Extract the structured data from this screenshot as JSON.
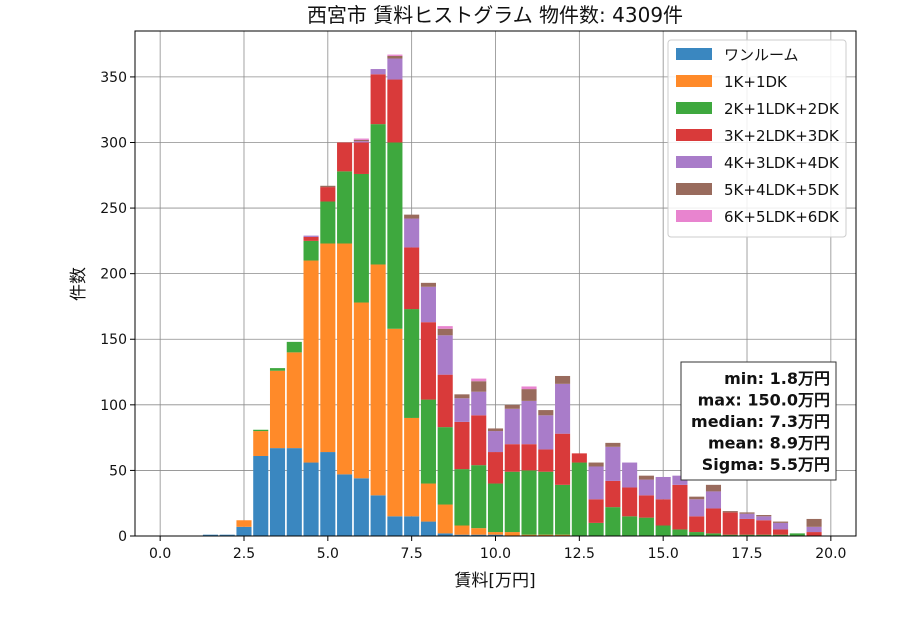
{
  "chart_data": {
    "type": "bar",
    "stacked": true,
    "title": "西宮市 賃料ヒストグラム 物件数: 4309件",
    "xlabel": "賃料[万円]",
    "ylabel": "件数",
    "xlim": [
      -0.75,
      20.75
    ],
    "ylim": [
      0,
      385
    ],
    "grid": true,
    "legend_position": "top-right",
    "xticks": [
      "0.0",
      "2.5",
      "5.0",
      "7.5",
      "10.0",
      "12.5",
      "15.0",
      "17.5",
      "20.0"
    ],
    "xtick_values": [
      0,
      2.5,
      5,
      7.5,
      10,
      12.5,
      15,
      17.5,
      20
    ],
    "yticks": [
      0,
      50,
      100,
      150,
      200,
      250,
      300,
      350
    ],
    "bin_start": 1.25,
    "bin_width": 0.5,
    "x": [
      1.5,
      2.0,
      2.5,
      3.0,
      3.5,
      4.0,
      4.5,
      5.0,
      5.5,
      6.0,
      6.5,
      7.0,
      7.5,
      8.0,
      8.5,
      9.0,
      9.5,
      10.0,
      10.5,
      11.0,
      11.5,
      12.0,
      12.5,
      13.0,
      13.5,
      14.0,
      14.5,
      15.0,
      15.5,
      16.0,
      16.5,
      17.0,
      17.5,
      18.0,
      18.5,
      19.0,
      19.5
    ],
    "series": [
      {
        "name": "ワンルーム",
        "color": "#3a87c0",
        "values": [
          1,
          1,
          7,
          61,
          67,
          67,
          56,
          64,
          47,
          44,
          31,
          15,
          15,
          11,
          2,
          1,
          1,
          1,
          0,
          0,
          0,
          0,
          0,
          0,
          0,
          0,
          0,
          0,
          0,
          0,
          0,
          0,
          0,
          0,
          0,
          0,
          0
        ]
      },
      {
        "name": "1K+1DK",
        "color": "#ff8a29",
        "values": [
          0,
          0,
          5,
          19,
          59,
          73,
          154,
          159,
          176,
          134,
          176,
          143,
          75,
          29,
          22,
          7,
          5,
          2,
          3,
          1,
          1,
          1,
          0,
          0,
          0,
          0,
          0,
          0,
          0,
          0,
          0,
          0,
          0,
          0,
          0,
          0,
          0
        ]
      },
      {
        "name": "2K+1LDK+2DK",
        "color": "#3ea83e",
        "values": [
          0,
          0,
          0,
          1,
          2,
          8,
          15,
          32,
          55,
          98,
          107,
          142,
          83,
          64,
          59,
          43,
          48,
          37,
          46,
          49,
          48,
          38,
          56,
          10,
          22,
          15,
          14,
          8,
          5,
          3,
          2,
          1,
          1,
          1,
          1,
          2,
          0
        ]
      },
      {
        "name": "3K+2LDK+3DK",
        "color": "#d93a3a",
        "values": [
          0,
          0,
          0,
          0,
          0,
          0,
          3,
          11,
          22,
          24,
          38,
          48,
          47,
          59,
          40,
          36,
          38,
          24,
          21,
          20,
          17,
          39,
          7,
          18,
          20,
          22,
          17,
          20,
          34,
          12,
          19,
          17,
          12,
          11,
          4,
          0,
          3
        ]
      },
      {
        "name": "4K+3LDK+4DK",
        "color": "#a97cc9",
        "values": [
          0,
          0,
          0,
          0,
          0,
          0,
          1,
          0,
          0,
          1,
          4,
          16,
          22,
          27,
          30,
          18,
          18,
          16,
          27,
          33,
          26,
          38,
          0,
          25,
          26,
          19,
          12,
          17,
          7,
          13,
          13,
          0,
          4,
          3,
          5,
          0,
          4
        ]
      },
      {
        "name": "5K+4LDK+5DK",
        "color": "#996b5d",
        "values": [
          0,
          0,
          0,
          0,
          0,
          0,
          0,
          1,
          0,
          1,
          0,
          2,
          3,
          3,
          5,
          3,
          8,
          2,
          3,
          9,
          4,
          6,
          0,
          3,
          3,
          0,
          3,
          0,
          0,
          2,
          5,
          1,
          1,
          1,
          1,
          0,
          6
        ]
      },
      {
        "name": "6K+5LDK+6DK",
        "color": "#e884cf",
        "values": [
          0,
          0,
          0,
          0,
          0,
          0,
          0,
          0,
          0,
          1,
          0,
          1,
          0,
          0,
          2,
          0,
          2,
          0,
          0,
          2,
          0,
          0,
          0,
          0,
          0,
          0,
          0,
          0,
          0,
          0,
          0,
          0,
          0,
          0,
          0,
          0,
          0
        ]
      }
    ],
    "stats": [
      "min: 1.8万円",
      "max: 150.0万円",
      "median: 7.3万円",
      "mean: 8.9万円",
      "Sigma: 5.5万円"
    ]
  }
}
